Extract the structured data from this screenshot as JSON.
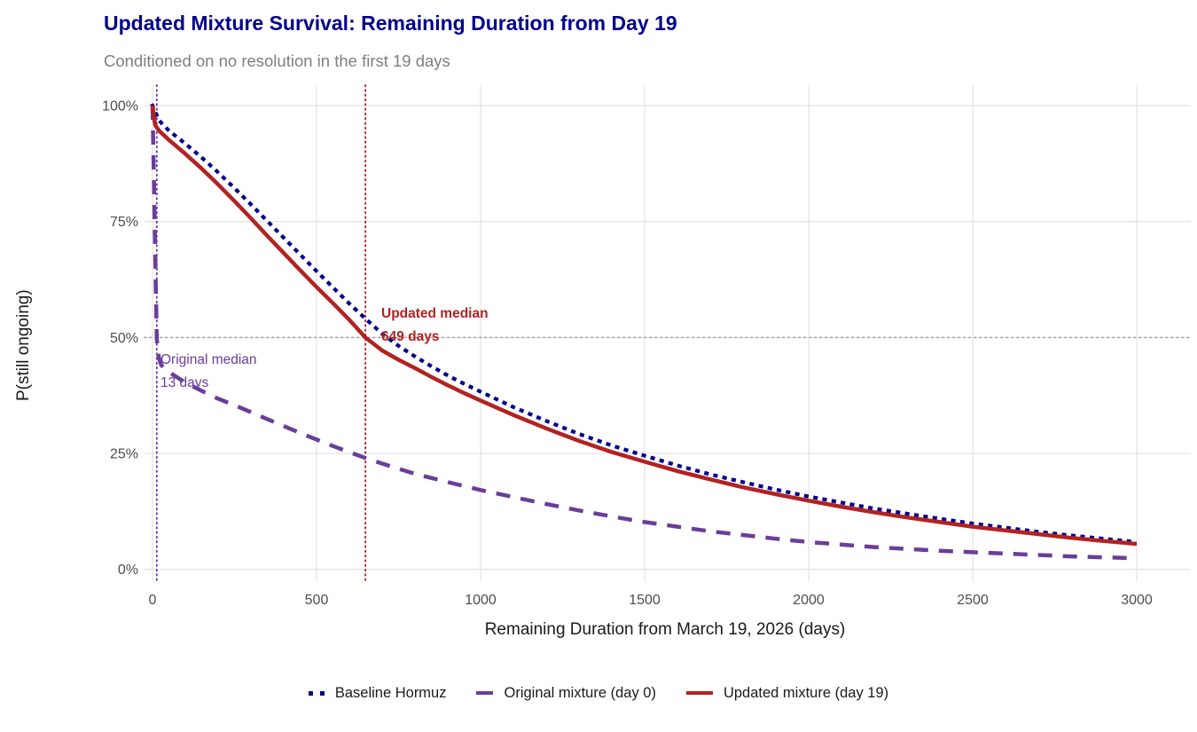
{
  "header": {
    "title": "Updated Mixture Survival: Remaining Duration from Day 19",
    "subtitle": "Conditioned on no resolution in the first 19 days"
  },
  "colors": {
    "title": "#00008B",
    "subtitle": "#7F7F7F",
    "axis_title": "#1A1A1A",
    "tick_label": "#4D4D4D",
    "grid": "#E4E4E4",
    "refline_gray": "#9A9A9A",
    "baseline_navy": "#00008B",
    "original_purple": "#6A3D9A",
    "updated_red": "#B22222"
  },
  "chart_data": {
    "type": "line",
    "title": "Updated Mixture Survival: Remaining Duration from Day 19",
    "subtitle": "Conditioned on no resolution in the first 19 days",
    "xlabel": "Remaining Duration from March 19, 2026 (days)",
    "ylabel": "P(still ongoing)",
    "xlim": [
      0,
      3000
    ],
    "ylim": [
      0,
      100
    ],
    "grid": true,
    "legend_position": "bottom",
    "x_ticks": [
      0,
      500,
      1000,
      1500,
      2000,
      2500,
      3000
    ],
    "y_ticks": [
      {
        "v": 0,
        "label": "0%"
      },
      {
        "v": 25,
        "label": "25%"
      },
      {
        "v": 50,
        "label": "50%"
      },
      {
        "v": 75,
        "label": "75%"
      },
      {
        "v": 100,
        "label": "100%"
      }
    ],
    "reference_line_y_pct": 50,
    "annotations": {
      "updated_median": {
        "line1": "Updated median",
        "line2": "649 days",
        "x_days": 649,
        "color": "#B22222",
        "bold": true
      },
      "original_median": {
        "line1": "Original median",
        "line2": "13 days",
        "x_days": 13,
        "color": "#6A3D9A",
        "bold": false
      }
    },
    "series": [
      {
        "id": "baseline",
        "name": "Baseline Hormuz",
        "color": "#00008B",
        "linetype": "dotted",
        "points": [
          [
            0,
            100
          ],
          [
            20,
            96.8
          ],
          [
            50,
            94.6
          ],
          [
            100,
            91.8
          ],
          [
            150,
            88.8
          ],
          [
            200,
            85.6
          ],
          [
            250,
            82.2
          ],
          [
            300,
            78.7
          ],
          [
            350,
            75.1
          ],
          [
            400,
            71.5
          ],
          [
            450,
            67.9
          ],
          [
            500,
            64.3
          ],
          [
            550,
            60.8
          ],
          [
            600,
            57.3
          ],
          [
            650,
            54
          ],
          [
            700,
            50.8
          ],
          [
            750,
            48.2
          ],
          [
            800,
            45.9
          ],
          [
            850,
            43.8
          ],
          [
            900,
            41.8
          ],
          [
            950,
            40
          ],
          [
            1000,
            38.3
          ],
          [
            1100,
            35
          ],
          [
            1200,
            32
          ],
          [
            1300,
            29.2
          ],
          [
            1400,
            26.7
          ],
          [
            1500,
            24.5
          ],
          [
            1600,
            22.4
          ],
          [
            1700,
            20.5
          ],
          [
            1800,
            18.8
          ],
          [
            1900,
            17.2
          ],
          [
            2000,
            15.7
          ],
          [
            2100,
            14.4
          ],
          [
            2200,
            13.1
          ],
          [
            2300,
            12
          ],
          [
            2400,
            10.9
          ],
          [
            2500,
            9.9
          ],
          [
            2600,
            9
          ],
          [
            2700,
            8.1
          ],
          [
            2800,
            7.3
          ],
          [
            2900,
            6.6
          ],
          [
            3000,
            5.9
          ]
        ]
      },
      {
        "id": "original",
        "name": "Original mixture (day 0)",
        "color": "#6A3D9A",
        "linetype": "dashed",
        "points": [
          [
            0,
            100
          ],
          [
            2,
            93
          ],
          [
            4,
            85
          ],
          [
            6,
            77
          ],
          [
            8,
            69
          ],
          [
            10,
            61
          ],
          [
            13,
            50
          ],
          [
            16,
            47.2
          ],
          [
            20,
            45.4
          ],
          [
            27,
            44
          ],
          [
            40,
            43.1
          ],
          [
            60,
            42.1
          ],
          [
            80,
            41.2
          ],
          [
            100,
            40.3
          ],
          [
            150,
            38.5
          ],
          [
            200,
            36.8
          ],
          [
            250,
            35.4
          ],
          [
            300,
            33.9
          ],
          [
            350,
            32.4
          ],
          [
            400,
            30.9
          ],
          [
            450,
            29.4
          ],
          [
            500,
            28
          ],
          [
            550,
            26.6
          ],
          [
            600,
            25.3
          ],
          [
            650,
            24
          ],
          [
            700,
            22.8
          ],
          [
            750,
            21.7
          ],
          [
            800,
            20.6
          ],
          [
            900,
            18.8
          ],
          [
            1000,
            17.1
          ],
          [
            1100,
            15.6
          ],
          [
            1200,
            14.1
          ],
          [
            1300,
            12.7
          ],
          [
            1400,
            11.4
          ],
          [
            1500,
            10.2
          ],
          [
            1600,
            9.2
          ],
          [
            1700,
            8.2
          ],
          [
            1800,
            7.4
          ],
          [
            1900,
            6.6
          ],
          [
            2000,
            5.9
          ],
          [
            2200,
            4.8
          ],
          [
            2400,
            4
          ],
          [
            2600,
            3.4
          ],
          [
            2800,
            2.8
          ],
          [
            3000,
            2.4
          ]
        ]
      },
      {
        "id": "updated",
        "name": "Updated mixture (day 19)",
        "color": "#B22222",
        "linetype": "solid",
        "points": [
          [
            0,
            100
          ],
          [
            8,
            95.8
          ],
          [
            20,
            94.6
          ],
          [
            50,
            92.6
          ],
          [
            100,
            89.6
          ],
          [
            150,
            86.4
          ],
          [
            200,
            83
          ],
          [
            250,
            79.4
          ],
          [
            300,
            75.7
          ],
          [
            350,
            71.9
          ],
          [
            400,
            68.2
          ],
          [
            450,
            64.5
          ],
          [
            500,
            60.9
          ],
          [
            550,
            57.4
          ],
          [
            600,
            53.8
          ],
          [
            649,
            50
          ],
          [
            700,
            47.2
          ],
          [
            750,
            45.2
          ],
          [
            800,
            43.4
          ],
          [
            850,
            41.5
          ],
          [
            900,
            39.7
          ],
          [
            950,
            38
          ],
          [
            1000,
            36.4
          ],
          [
            1100,
            33.3
          ],
          [
            1200,
            30.4
          ],
          [
            1300,
            27.7
          ],
          [
            1400,
            25.3
          ],
          [
            1500,
            23.2
          ],
          [
            1600,
            21.2
          ],
          [
            1700,
            19.4
          ],
          [
            1800,
            17.7
          ],
          [
            1900,
            16.2
          ],
          [
            2000,
            14.8
          ],
          [
            2100,
            13.5
          ],
          [
            2200,
            12.3
          ],
          [
            2300,
            11.2
          ],
          [
            2400,
            10.2
          ],
          [
            2500,
            9.2
          ],
          [
            2600,
            8.4
          ],
          [
            2700,
            7.6
          ],
          [
            2800,
            6.8
          ],
          [
            2900,
            6.1
          ],
          [
            3000,
            5.5
          ]
        ]
      }
    ],
    "legend": {
      "items": [
        {
          "id": "baseline",
          "label": "Baseline Hormuz",
          "color": "#00008B",
          "linetype": "dotted"
        },
        {
          "id": "original",
          "label": "Original mixture (day 0)",
          "color": "#6A3D9A",
          "linetype": "dashed"
        },
        {
          "id": "updated",
          "label": "Updated mixture (day 19)",
          "color": "#B22222",
          "linetype": "solid"
        }
      ]
    }
  }
}
